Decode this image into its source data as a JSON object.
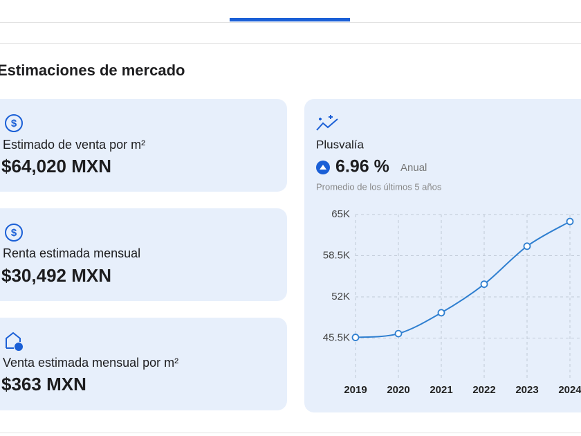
{
  "tab_bar": {},
  "section": {
    "title": "Estimaciones de mercado"
  },
  "cards": [
    {
      "label": "Estimado de venta por m²",
      "value": "$64,020 MXN"
    },
    {
      "label": "Renta estimada mensual",
      "value": "$30,492 MXN"
    },
    {
      "label": "Venta estimada mensual por m²",
      "value": "$363 MXN"
    }
  ],
  "plusvalia": {
    "title": "Plusvalía",
    "rate": "6.96 %",
    "period": "Anual",
    "note": "Promedio de los últimos 5 años"
  },
  "chart_data": {
    "type": "line",
    "categories": [
      "2019",
      "2020",
      "2021",
      "2022",
      "2023",
      "2024"
    ],
    "series": [
      {
        "color": "#2f7fd0",
        "values": [
          45600,
          46200,
          49500,
          54000,
          60000,
          63900
        ]
      }
    ],
    "ylim": [
      39000,
      65000
    ],
    "yticks": [
      {
        "value": 45500,
        "label": "45.5K"
      },
      {
        "value": 52000,
        "label": "52K"
      },
      {
        "value": 58500,
        "label": "58.5K"
      },
      {
        "value": 65000,
        "label": "65K"
      }
    ],
    "grid": true
  }
}
